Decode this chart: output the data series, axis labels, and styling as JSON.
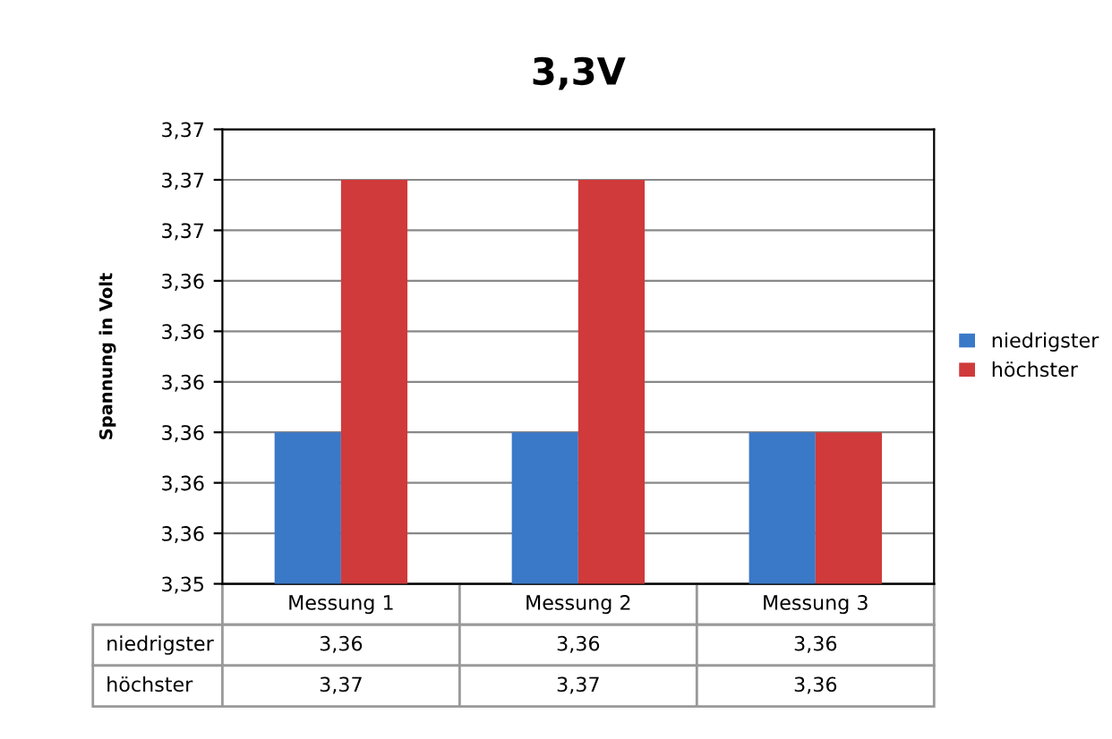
{
  "chart_data": {
    "type": "bar",
    "title": "3,3V",
    "ylabel": "Spannung in Volt",
    "categories": [
      "Messung 1",
      "Messung 2",
      "Messung 3"
    ],
    "series": [
      {
        "name": "niedrigster",
        "color": "#3a78c8",
        "values": [
          3.359,
          3.359,
          3.359
        ],
        "value_labels": [
          "3,36",
          "3,36",
          "3,36"
        ]
      },
      {
        "name": "höchster",
        "color": "#d03a3a",
        "values": [
          3.369,
          3.369,
          3.359
        ],
        "value_labels": [
          "3,37",
          "3,37",
          "3,36"
        ]
      }
    ],
    "ylim": [
      3.353,
      3.371
    ],
    "yticks": [
      {
        "value": 3.353,
        "label": "3,35"
      },
      {
        "value": 3.355,
        "label": "3,36"
      },
      {
        "value": 3.357,
        "label": "3,36"
      },
      {
        "value": 3.359,
        "label": "3,36"
      },
      {
        "value": 3.361,
        "label": "3,36"
      },
      {
        "value": 3.363,
        "label": "3,36"
      },
      {
        "value": 3.365,
        "label": "3,36"
      },
      {
        "value": 3.367,
        "label": "3,37"
      },
      {
        "value": 3.369,
        "label": "3,37"
      },
      {
        "value": 3.371,
        "label": "3,37"
      }
    ],
    "grid": "y",
    "legend": "right"
  }
}
